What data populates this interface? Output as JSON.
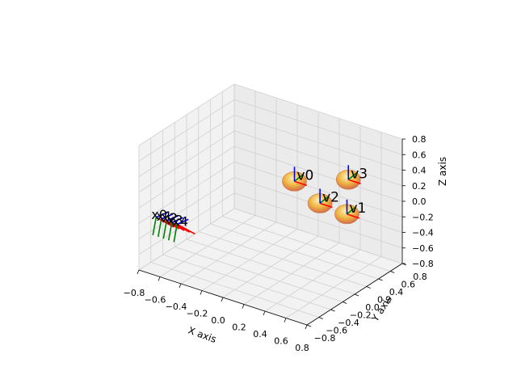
{
  "chart_data": {
    "type": "scatter3d",
    "title": "",
    "xlabel": "X axis",
    "ylabel": "Y axis",
    "zlabel": "Z axis",
    "xlim": [
      -0.8,
      0.8
    ],
    "ylim": [
      -0.8,
      0.8
    ],
    "zlim": [
      -0.8,
      0.8
    ],
    "x_ticks": [
      "−0.8",
      "−0.6",
      "−0.4",
      "−0.2",
      "0.0",
      "0.2",
      "0.4",
      "0.6",
      "0.8"
    ],
    "y_ticks": [
      "−0.8",
      "−0.6",
      "−0.4",
      "−0.2",
      "0.0",
      "0.2",
      "0.4",
      "0.6",
      "0.8"
    ],
    "z_ticks": [
      "−0.8",
      "−0.6",
      "−0.4",
      "−0.2",
      "0.0",
      "0.2",
      "0.4",
      "0.6",
      "0.8"
    ],
    "grid": true,
    "colors": {
      "sphere": "#f0b030",
      "x_axis_arrow": "#ff0000",
      "y_axis_arrow": "#008000",
      "z_axis_arrow": "#0000ff"
    },
    "vertices": [
      {
        "label": "v0",
        "x": 0.0,
        "y": 0.4,
        "z": 0.1
      },
      {
        "label": "v1",
        "x": 0.5,
        "y": 0.4,
        "z": -0.1
      },
      {
        "label": "v2",
        "x": 0.3,
        "y": 0.3,
        "z": 0.0
      },
      {
        "label": "v3",
        "x": 0.4,
        "y": 0.6,
        "z": 0.2
      }
    ],
    "frames": [
      {
        "label": "x0",
        "x": -0.75,
        "y": -0.6,
        "z": -0.2
      },
      {
        "label": "x1",
        "x": -0.7,
        "y": -0.6,
        "z": -0.2
      },
      {
        "label": "x2",
        "x": -0.65,
        "y": -0.6,
        "z": -0.2
      },
      {
        "label": "x3",
        "x": -0.6,
        "y": -0.6,
        "z": -0.2
      },
      {
        "label": "x4",
        "x": -0.55,
        "y": -0.6,
        "z": -0.2
      }
    ]
  }
}
